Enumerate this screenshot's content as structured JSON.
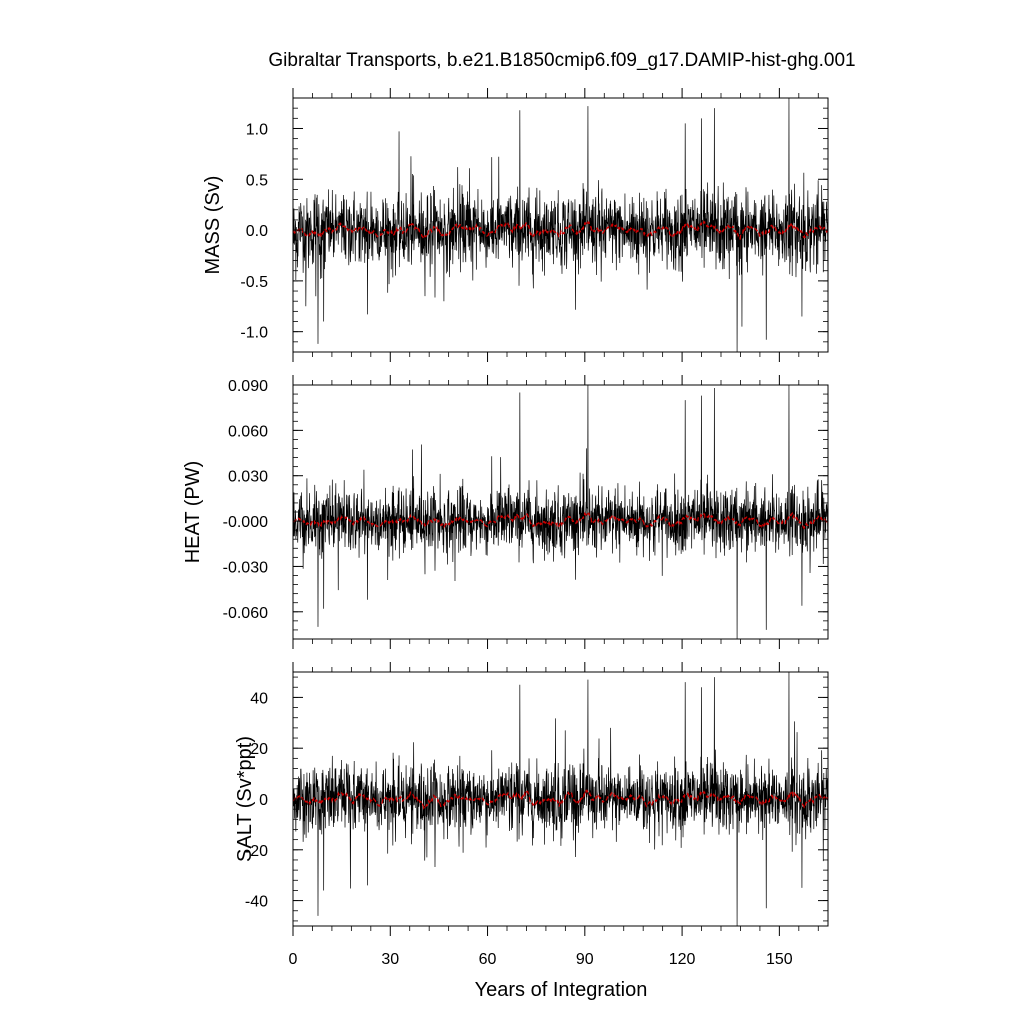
{
  "chart_data": {
    "type": "line",
    "title": "Gibraltar Transports, b.e21.B1850cmip6.f09_g17.DAMIP-hist-ghg.001",
    "xlabel": "Years of Integration",
    "xlim": [
      0,
      165
    ],
    "xticks": [
      0,
      30,
      60,
      90,
      120,
      150
    ],
    "xtick_labels": [
      "0",
      "30",
      "60",
      "90",
      "120",
      "150"
    ],
    "grid": false,
    "legend": "none",
    "colors": {
      "raw": "#000000",
      "smoothed": "#cc0000"
    },
    "panels": [
      {
        "name": "mass",
        "ylabel": "MASS (Sv)",
        "ylim": [
          -1.2,
          1.3
        ],
        "yticks": [
          -1.0,
          -0.5,
          0.0,
          0.5,
          1.0
        ],
        "ytick_labels": [
          "-1.0",
          "-0.5",
          "0.0",
          "0.5",
          "1.0"
        ],
        "noise_sd": 0.2,
        "spikes": [
          {
            "x": 70.0,
            "y": 1.18
          },
          {
            "x": 91.0,
            "y": 1.22
          },
          {
            "x": 130.0,
            "y": 1.2
          },
          {
            "x": 153.0,
            "y": 1.3
          },
          {
            "x": 121.0,
            "y": 1.05
          },
          {
            "x": 126.0,
            "y": 1.1
          },
          {
            "x": 137.0,
            "y": -1.2
          },
          {
            "x": 7.7,
            "y": -1.12
          },
          {
            "x": 146.0,
            "y": -1.08
          },
          {
            "x": 9.5,
            "y": -0.9
          },
          {
            "x": 4.0,
            "y": -0.75
          },
          {
            "x": 23.0,
            "y": -0.83
          },
          {
            "x": 157.0,
            "y": -0.85
          },
          {
            "x": 138.5,
            "y": -0.95
          }
        ]
      },
      {
        "name": "heat",
        "ylabel": "HEAT (PW)",
        "ylim": [
          -0.078,
          0.09
        ],
        "yticks": [
          -0.06,
          -0.03,
          0.0,
          0.03,
          0.06,
          0.09
        ],
        "ytick_labels": [
          "-0.060",
          "-0.030",
          "-0.000",
          "0.030",
          "0.060",
          "0.090"
        ],
        "noise_sd": 0.012,
        "spikes": [
          {
            "x": 70.0,
            "y": 0.085
          },
          {
            "x": 91.0,
            "y": 0.09
          },
          {
            "x": 130.0,
            "y": 0.088
          },
          {
            "x": 153.0,
            "y": 0.09
          },
          {
            "x": 121.0,
            "y": 0.08
          },
          {
            "x": 126.0,
            "y": 0.083
          },
          {
            "x": 137.0,
            "y": -0.078
          },
          {
            "x": 7.7,
            "y": -0.07
          },
          {
            "x": 146.0,
            "y": -0.072
          },
          {
            "x": 9.5,
            "y": -0.058
          },
          {
            "x": 23.0,
            "y": -0.052
          },
          {
            "x": 157.0,
            "y": -0.056
          }
        ]
      },
      {
        "name": "salt",
        "ylabel": "SALT (Sv*ppt)",
        "ylim": [
          -50,
          50
        ],
        "yticks": [
          -40,
          -20,
          0,
          20,
          40
        ],
        "ytick_labels": [
          "-40",
          "-20",
          "0",
          "20",
          "40"
        ],
        "noise_sd": 7.5,
        "spikes": [
          {
            "x": 70.0,
            "y": 45
          },
          {
            "x": 91.0,
            "y": 47
          },
          {
            "x": 130.0,
            "y": 48
          },
          {
            "x": 153.0,
            "y": 50
          },
          {
            "x": 121.0,
            "y": 46
          },
          {
            "x": 126.0,
            "y": 44
          },
          {
            "x": 137.0,
            "y": -50
          },
          {
            "x": 7.7,
            "y": -46
          },
          {
            "x": 146.0,
            "y": -43
          },
          {
            "x": 9.5,
            "y": -36
          },
          {
            "x": 23.0,
            "y": -34
          },
          {
            "x": 157.0,
            "y": -35
          }
        ]
      }
    ]
  }
}
